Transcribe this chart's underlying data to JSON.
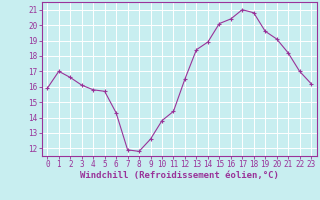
{
  "x": [
    0,
    1,
    2,
    3,
    4,
    5,
    6,
    7,
    8,
    9,
    10,
    11,
    12,
    13,
    14,
    15,
    16,
    17,
    18,
    19,
    20,
    21,
    22,
    23
  ],
  "y": [
    15.9,
    17.0,
    16.6,
    16.1,
    15.8,
    15.7,
    14.3,
    11.9,
    11.8,
    12.6,
    13.8,
    14.4,
    16.5,
    18.4,
    18.9,
    20.1,
    20.4,
    21.0,
    20.8,
    19.6,
    19.1,
    18.2,
    17.0,
    16.2
  ],
  "line_color": "#993399",
  "marker": "+",
  "bg_color": "#c8eef0",
  "grid_color": "#ffffff",
  "axis_color": "#993399",
  "xlabel": "Windchill (Refroidissement éolien,°C)",
  "ylim": [
    11.5,
    21.5
  ],
  "xlim": [
    -0.5,
    23.5
  ],
  "yticks": [
    12,
    13,
    14,
    15,
    16,
    17,
    18,
    19,
    20,
    21
  ],
  "xticks": [
    0,
    1,
    2,
    3,
    4,
    5,
    6,
    7,
    8,
    9,
    10,
    11,
    12,
    13,
    14,
    15,
    16,
    17,
    18,
    19,
    20,
    21,
    22,
    23
  ],
  "tick_fontsize": 5.5,
  "xlabel_fontsize": 6.5
}
